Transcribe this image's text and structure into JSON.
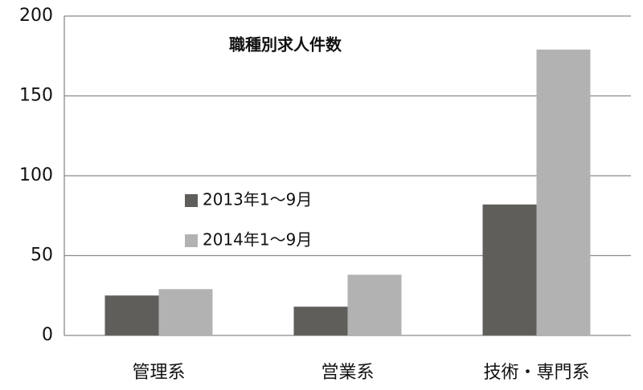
{
  "chart_data": {
    "type": "bar",
    "title": "職種別求人件数",
    "categories": [
      "管理系",
      "営業系",
      "技術・専門系"
    ],
    "series": [
      {
        "name": "2013年1～9月",
        "color": "#5f5e5b",
        "values": [
          25,
          18,
          82
        ]
      },
      {
        "name": "2014年1～9月",
        "color": "#b3b2b2",
        "values": [
          29,
          38,
          179
        ]
      }
    ],
    "ylim": [
      0,
      200
    ],
    "yticks": [
      0,
      50,
      100,
      150,
      200
    ],
    "grid": true
  }
}
